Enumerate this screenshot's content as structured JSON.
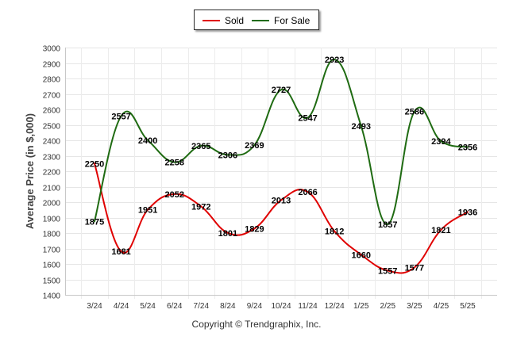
{
  "legend": {
    "sold_label": "Sold",
    "for_sale_label": "For Sale"
  },
  "copyright": "Copyright © Trendgraphix, Inc.",
  "colors": {
    "sold": "#e00000",
    "for_sale": "#1f6b12"
  },
  "chart_data": {
    "type": "line",
    "x": [
      "3/24",
      "4/24",
      "5/24",
      "6/24",
      "7/24",
      "8/24",
      "9/24",
      "10/24",
      "11/24",
      "12/24",
      "1/25",
      "2/25",
      "3/25",
      "4/25",
      "5/25"
    ],
    "series": [
      {
        "name": "Sold",
        "values": [
          2250,
          1681,
          1951,
          2052,
          1972,
          1801,
          1829,
          2013,
          2066,
          1812,
          1660,
          1557,
          1577,
          1821,
          1936
        ]
      },
      {
        "name": "For Sale",
        "values": [
          1875,
          2557,
          2400,
          2258,
          2365,
          2306,
          2369,
          2727,
          2547,
          2923,
          2493,
          1857,
          2586,
          2394,
          2356
        ]
      }
    ],
    "ylabel": "Average Price (in $,000)",
    "xlabel": "",
    "ylim": [
      1400,
      3000
    ],
    "yticks": [
      1400,
      1500,
      1600,
      1700,
      1800,
      1900,
      2000,
      2100,
      2200,
      2300,
      2400,
      2500,
      2600,
      2700,
      2800,
      2900,
      3000
    ],
    "grid": true,
    "legend_position": "top-center",
    "smooth": true
  }
}
